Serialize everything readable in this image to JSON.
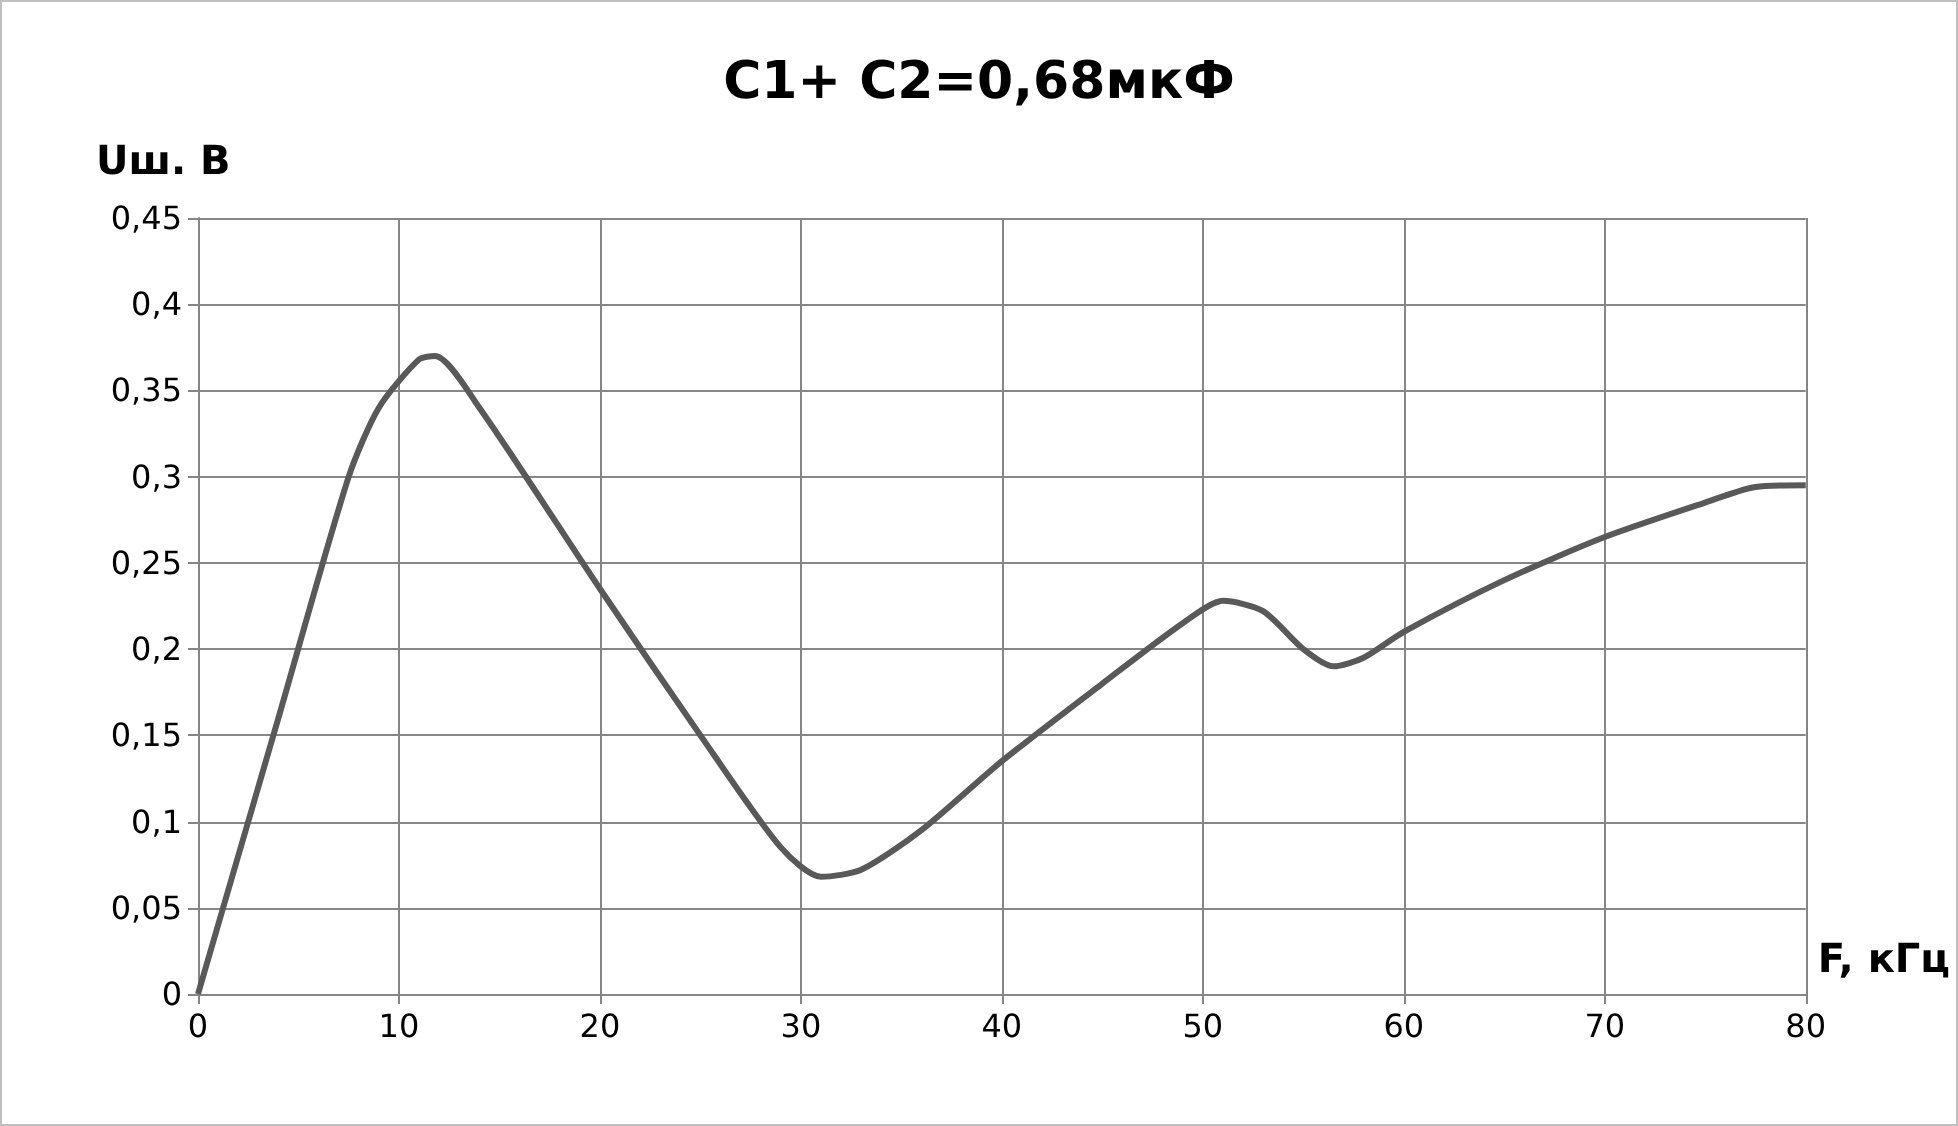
{
  "chart_data": {
    "type": "line",
    "title": "C1+ C2=0,68мкФ",
    "xlabel": "F, кГц",
    "ylabel": "Uш. В",
    "x": [
      0,
      4,
      7.5,
      9,
      11,
      11.8,
      14,
      20,
      25,
      29,
      31,
      33,
      36,
      40,
      45,
      49,
      51,
      53,
      55,
      56.5,
      58,
      60,
      65,
      70,
      75,
      77.5,
      80
    ],
    "series": [
      {
        "color": "#595959",
        "values": [
          0,
          0.16,
          0.3,
          0.34,
          0.368,
          0.37,
          0.34,
          0.235,
          0.15,
          0.085,
          0.068,
          0.072,
          0.095,
          0.135,
          0.18,
          0.215,
          0.228,
          0.222,
          0.2,
          0.19,
          0.195,
          0.21,
          0.24,
          0.265,
          0.285,
          0.294,
          0.295
        ]
      }
    ],
    "xlim": [
      0,
      80
    ],
    "xticks": [
      0,
      10,
      20,
      30,
      40,
      50,
      60,
      70,
      80
    ],
    "ylim": [
      0,
      0.45
    ],
    "yticks": [
      {
        "value": 0,
        "label": "0"
      },
      {
        "value": 0.05,
        "label": "0,05"
      },
      {
        "value": 0.1,
        "label": "0,1"
      },
      {
        "value": 0.15,
        "label": "0,15"
      },
      {
        "value": 0.2,
        "label": "0,2"
      },
      {
        "value": 0.25,
        "label": "0,25"
      },
      {
        "value": 0.3,
        "label": "0,3"
      },
      {
        "value": 0.35,
        "label": "0,35"
      },
      {
        "value": 0.4,
        "label": "0,4"
      },
      {
        "value": 0.45,
        "label": "0,45"
      }
    ],
    "grid": true,
    "marker": "none",
    "line_style": "solid"
  }
}
